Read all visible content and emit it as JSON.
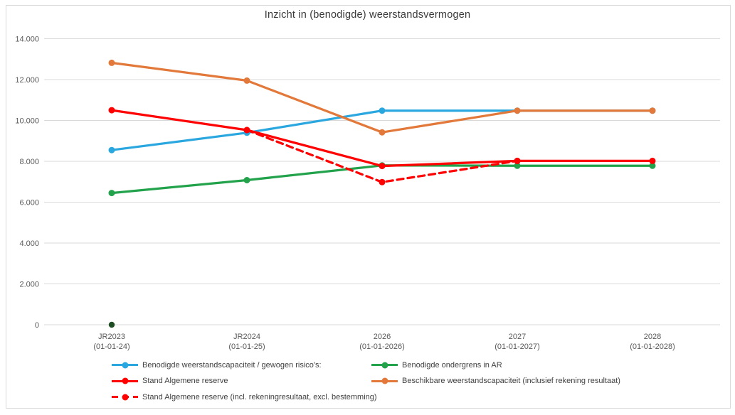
{
  "chart_data": {
    "type": "line",
    "title": "Inzicht in (benodigde) weerstandsvermogen",
    "ylim": [
      0,
      14000
    ],
    "grid": true,
    "grid_color": "#D9D9D9",
    "legend_position": "bottom",
    "y_ticks": [
      {
        "value": 0,
        "label": "0"
      },
      {
        "value": 2000,
        "label": "2.000"
      },
      {
        "value": 4000,
        "label": "4.000"
      },
      {
        "value": 6000,
        "label": "6.000"
      },
      {
        "value": 8000,
        "label": "8.000"
      },
      {
        "value": 10000,
        "label": "10.000"
      },
      {
        "value": 12000,
        "label": "12.000"
      },
      {
        "value": 14000,
        "label": "14.000"
      }
    ],
    "categories": [
      {
        "line1": "JR2023",
        "line2": "(01-01-24)"
      },
      {
        "line1": "JR2024",
        "line2": "(01-01-25)"
      },
      {
        "line1": "2026",
        "line2": "(01-01-2026)"
      },
      {
        "line1": "2027",
        "line2": "(01-01-2027)"
      },
      {
        "line1": "2028",
        "line2": "(01-01-2028)"
      }
    ],
    "series": [
      {
        "key": "benodigde-weerstandscapaciteit",
        "name": "Benodigde weerstandscapaciteit / gewogen risico's:",
        "color": "#2BA7E0",
        "dash": null,
        "values": [
          8550,
          9400,
          10480,
          10480,
          10480
        ]
      },
      {
        "key": "benodigde-ondergrens-in-ar",
        "name": "Benodigde ondergrens in AR",
        "color": "#21A24B",
        "dash": null,
        "values": [
          6450,
          7080,
          7800,
          7780,
          7780
        ]
      },
      {
        "key": "stand-algemene-reserve-incl-rekeningresultaat",
        "name": "Stand Algemene reserve (incl. rekeningresultaat, excl. bestemming)",
        "color": "#FF0000",
        "dash": "9 6",
        "values": [
          null,
          9530,
          6980,
          8020,
          null
        ]
      },
      {
        "key": "stand-algemene-reserve",
        "name": "Stand Algemene reserve",
        "color": "#FF0000",
        "dash": null,
        "values": [
          10500,
          9530,
          7770,
          8020,
          8020
        ]
      },
      {
        "key": "beschikbare-weerstandscapaciteit",
        "name": "Beschikbare weerstandscapaciteit (inclusief rekening resultaat)",
        "color": "#E2793A",
        "dash": null,
        "values": [
          12820,
          11950,
          9420,
          10480,
          10480
        ]
      }
    ],
    "extra_points": [
      {
        "name": "dark-green-zero-marker",
        "category_index": 0,
        "value": 0,
        "color": "#1E4D23"
      }
    ]
  }
}
